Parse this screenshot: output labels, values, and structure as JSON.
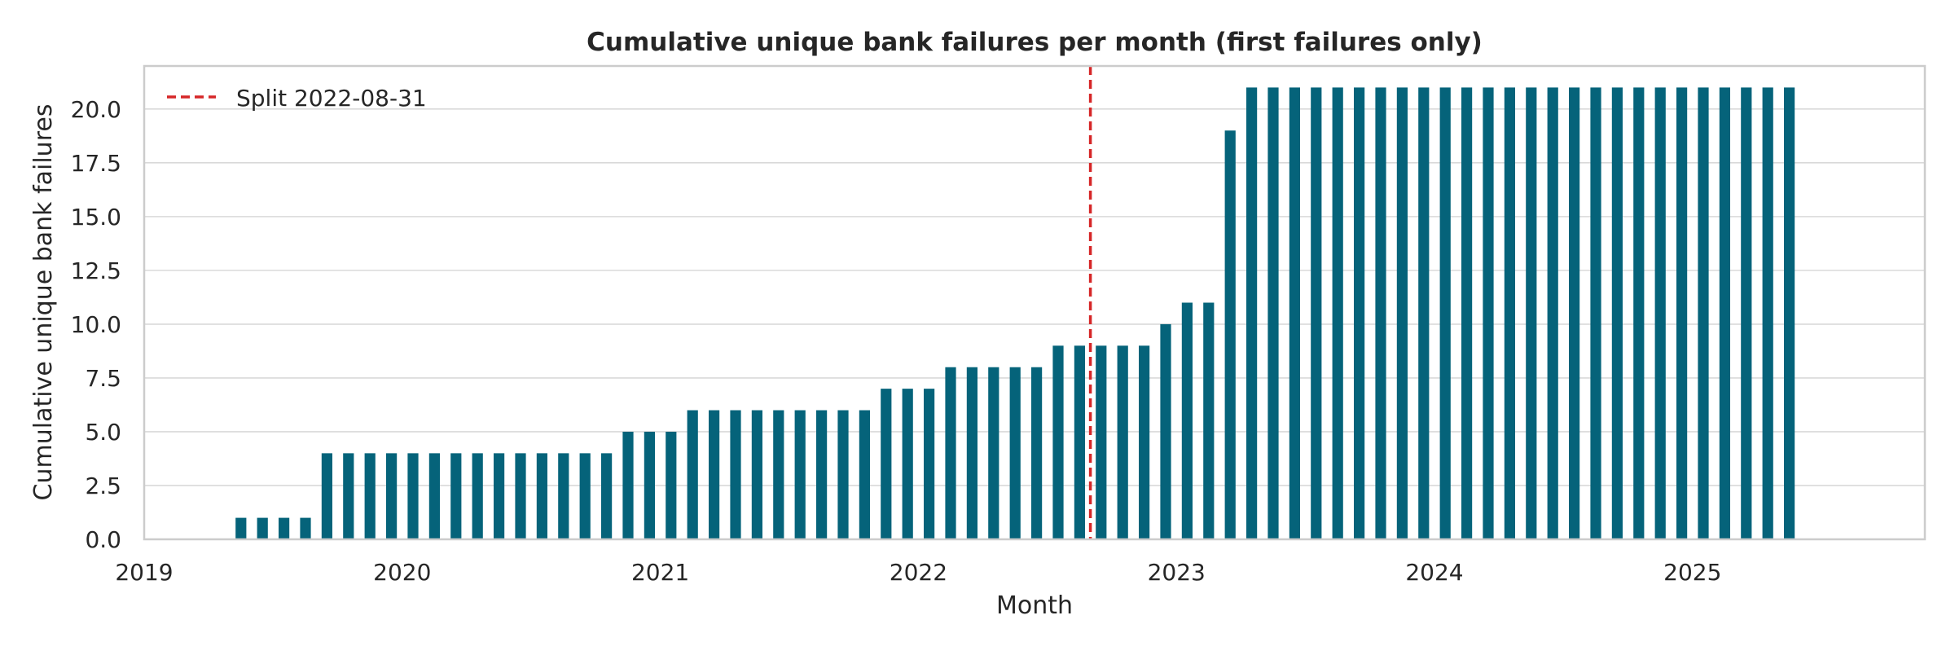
{
  "chart_data": {
    "type": "bar",
    "title": "Cumulative unique bank failures per month (first failures only)",
    "xlabel": "Month",
    "ylabel": "Cumulative unique bank failures",
    "x_start": "2019-01",
    "x_ticks": [
      "2019",
      "2020",
      "2021",
      "2022",
      "2023",
      "2024",
      "2025"
    ],
    "y_ticks": [
      "0.0",
      "2.5",
      "5.0",
      "7.5",
      "10.0",
      "12.5",
      "15.0",
      "17.5",
      "20.0"
    ],
    "ylim": [
      0,
      22
    ],
    "grid": true,
    "legend_position": "top-left",
    "split_line": {
      "label": "Split 2022-08-31",
      "date": "2022-08-31",
      "color": "#d62728"
    },
    "bar_color": "#05637a",
    "months": [
      "2019-01",
      "2019-02",
      "2019-03",
      "2019-04",
      "2019-05",
      "2019-06",
      "2019-07",
      "2019-08",
      "2019-09",
      "2019-10",
      "2019-11",
      "2019-12",
      "2020-01",
      "2020-02",
      "2020-03",
      "2020-04",
      "2020-05",
      "2020-06",
      "2020-07",
      "2020-08",
      "2020-09",
      "2020-10",
      "2020-11",
      "2020-12",
      "2021-01",
      "2021-02",
      "2021-03",
      "2021-04",
      "2021-05",
      "2021-06",
      "2021-07",
      "2021-08",
      "2021-09",
      "2021-10",
      "2021-11",
      "2021-12",
      "2022-01",
      "2022-02",
      "2022-03",
      "2022-04",
      "2022-05",
      "2022-06",
      "2022-07",
      "2022-08",
      "2022-09",
      "2022-10",
      "2022-11",
      "2022-12",
      "2023-01",
      "2023-02",
      "2023-03",
      "2023-04",
      "2023-05",
      "2023-06",
      "2023-07",
      "2023-08",
      "2023-09",
      "2023-10",
      "2023-11",
      "2023-12",
      "2024-01",
      "2024-02",
      "2024-03",
      "2024-04",
      "2024-05",
      "2024-06",
      "2024-07",
      "2024-08",
      "2024-09",
      "2024-10",
      "2024-11",
      "2024-12",
      "2025-01",
      "2025-02",
      "2025-03",
      "2025-04",
      "2025-05"
    ],
    "values": [
      0,
      0,
      0,
      0,
      1,
      1,
      1,
      1,
      4,
      4,
      4,
      4,
      4,
      4,
      4,
      4,
      4,
      4,
      4,
      4,
      4,
      4,
      5,
      5,
      5,
      6,
      6,
      6,
      6,
      6,
      6,
      6,
      6,
      6,
      7,
      7,
      7,
      8,
      8,
      8,
      8,
      8,
      9,
      9,
      9,
      9,
      9,
      10,
      11,
      11,
      19,
      21,
      21,
      21,
      21,
      21,
      21,
      21,
      21,
      21,
      21,
      21,
      21,
      21,
      21,
      21,
      21,
      21,
      21,
      21,
      21,
      21,
      21,
      21,
      21,
      21,
      21
    ]
  }
}
